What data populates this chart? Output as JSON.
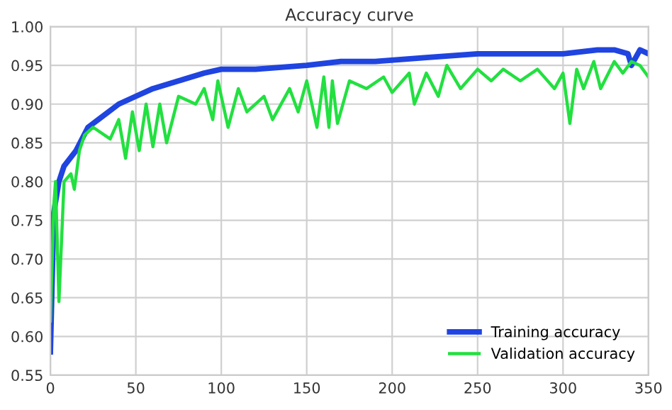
{
  "chart_data": {
    "type": "line",
    "title": "Accuracy curve",
    "xlim": [
      0,
      350
    ],
    "xticks": [
      0,
      50,
      100,
      150,
      200,
      250,
      300,
      350
    ],
    "ylim": [
      0.55,
      1.0
    ],
    "yticks": [
      {
        "value": 0.55,
        "label": "0.55"
      },
      {
        "value": 0.6,
        "label": "0.60"
      },
      {
        "value": 0.65,
        "label": "0.65"
      },
      {
        "value": 0.7,
        "label": "0.70"
      },
      {
        "value": 0.75,
        "label": "0.75"
      },
      {
        "value": 0.8,
        "label": "0.80"
      },
      {
        "value": 0.85,
        "label": "0.85"
      },
      {
        "value": 0.9,
        "label": "0.90"
      },
      {
        "value": 0.95,
        "label": "0.95"
      },
      {
        "value": 1.0,
        "label": "1.00"
      }
    ],
    "grid": true,
    "legend": "bottom right",
    "series": [
      {
        "name": "Training accuracy",
        "color": "#1f44e0",
        "x": [
          0,
          2,
          5,
          8,
          15,
          22,
          28,
          40,
          50,
          60,
          75,
          90,
          100,
          120,
          150,
          170,
          190,
          220,
          250,
          280,
          300,
          320,
          330,
          338,
          340,
          345,
          350
        ],
        "values": [
          0.58,
          0.76,
          0.8,
          0.82,
          0.84,
          0.87,
          0.88,
          0.9,
          0.91,
          0.92,
          0.93,
          0.94,
          0.945,
          0.945,
          0.95,
          0.955,
          0.955,
          0.96,
          0.965,
          0.965,
          0.965,
          0.97,
          0.97,
          0.965,
          0.95,
          0.97,
          0.965
        ]
      },
      {
        "name": "Validation accuracy",
        "color": "#22e040",
        "x": [
          0,
          2,
          3,
          5,
          8,
          12,
          14,
          17,
          20,
          25,
          35,
          40,
          44,
          48,
          52,
          56,
          60,
          64,
          68,
          75,
          85,
          90,
          95,
          98,
          104,
          110,
          115,
          125,
          130,
          140,
          145,
          150,
          156,
          160,
          163,
          165,
          168,
          175,
          185,
          195,
          200,
          210,
          213,
          220,
          227,
          232,
          240,
          250,
          258,
          265,
          275,
          285,
          295,
          300,
          304,
          308,
          312,
          318,
          322,
          330,
          335,
          340,
          345,
          350
        ],
        "values": [
          0.62,
          0.77,
          0.8,
          0.645,
          0.8,
          0.81,
          0.79,
          0.84,
          0.86,
          0.87,
          0.855,
          0.88,
          0.83,
          0.89,
          0.84,
          0.9,
          0.845,
          0.9,
          0.85,
          0.91,
          0.9,
          0.92,
          0.88,
          0.93,
          0.87,
          0.92,
          0.89,
          0.91,
          0.88,
          0.92,
          0.89,
          0.93,
          0.87,
          0.935,
          0.87,
          0.93,
          0.875,
          0.93,
          0.92,
          0.935,
          0.915,
          0.94,
          0.9,
          0.94,
          0.91,
          0.95,
          0.92,
          0.945,
          0.93,
          0.945,
          0.93,
          0.945,
          0.92,
          0.94,
          0.875,
          0.945,
          0.92,
          0.955,
          0.92,
          0.955,
          0.94,
          0.955,
          0.95,
          0.935
        ]
      }
    ]
  }
}
